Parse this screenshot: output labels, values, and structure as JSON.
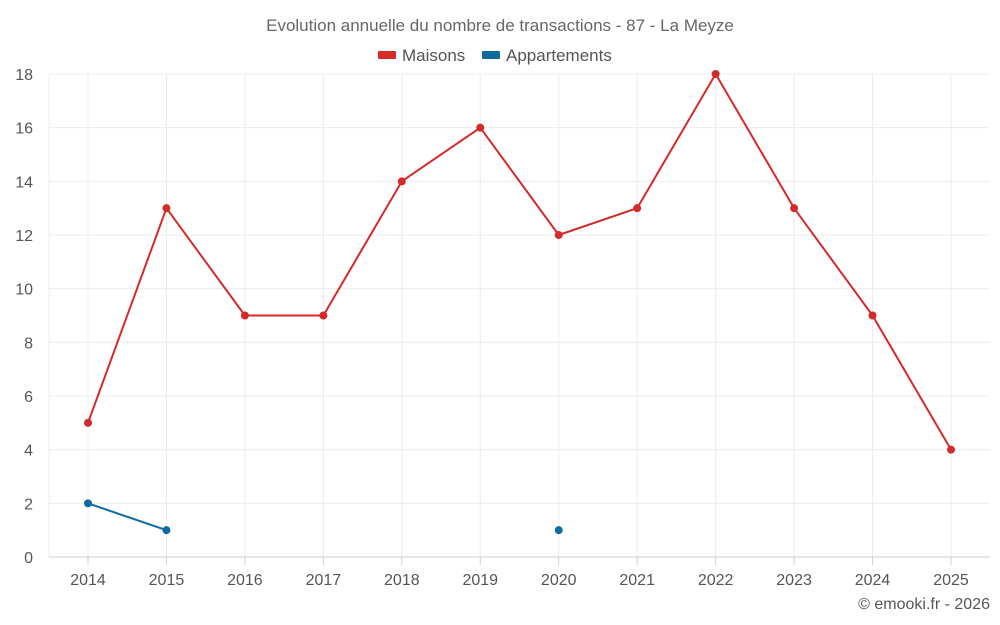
{
  "chart_data": {
    "type": "line",
    "title": "Evolution annuelle du nombre de transactions - 87 - La Meyze",
    "categories": [
      "2014",
      "2015",
      "2016",
      "2017",
      "2018",
      "2019",
      "2020",
      "2021",
      "2022",
      "2023",
      "2024",
      "2025"
    ],
    "ylim": [
      0,
      18
    ],
    "yticks": [
      0,
      2,
      4,
      6,
      8,
      10,
      12,
      14,
      16,
      18
    ],
    "grid": true,
    "legend_position": "top-center",
    "series": [
      {
        "name": "Maisons",
        "color": "#d42a2a",
        "values": [
          5,
          13,
          9,
          9,
          14,
          16,
          12,
          13,
          18,
          13,
          9,
          4
        ]
      },
      {
        "name": "Appartements",
        "color": "#0f6aa0",
        "values": [
          2,
          1,
          null,
          null,
          null,
          null,
          1,
          null,
          null,
          null,
          null,
          null
        ]
      }
    ],
    "credit": "© emooki.fr - 2026"
  }
}
